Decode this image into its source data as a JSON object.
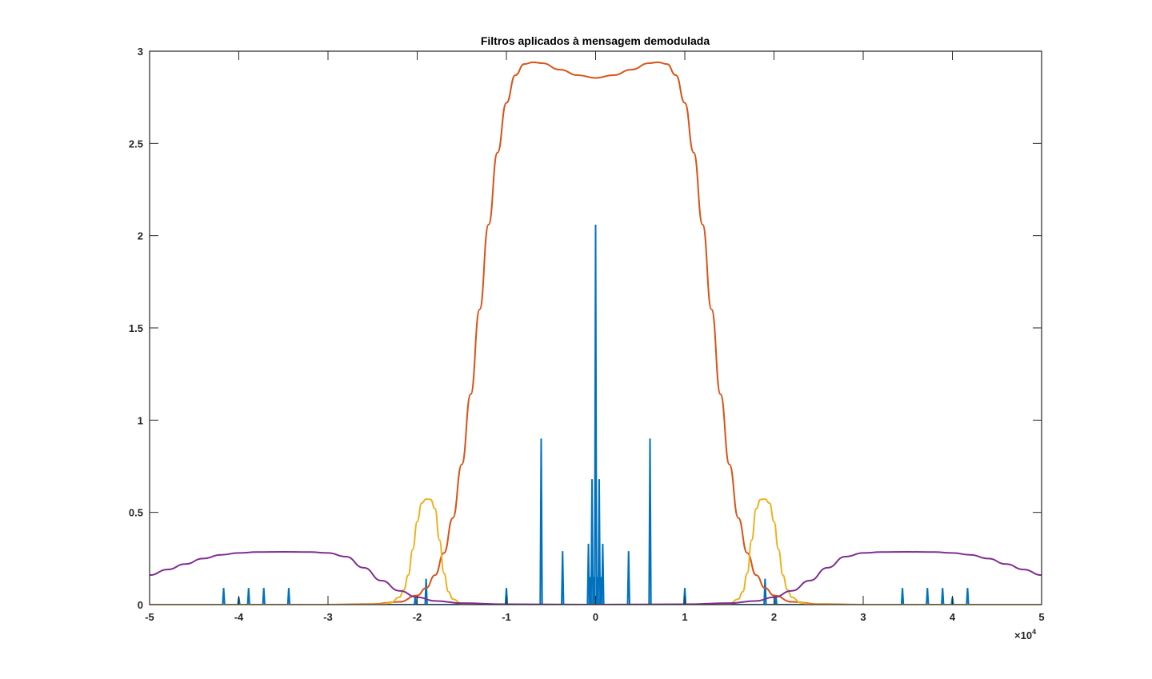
{
  "chart_data": {
    "type": "line",
    "title": "Filtros aplicados à mensagem demodulada",
    "xlabel": "",
    "ylabel": "",
    "xlim": [
      -50000,
      50000
    ],
    "ylim": [
      0,
      3
    ],
    "x_multiplier_label": "×10",
    "x_multiplier_exponent": "4",
    "xtick_values": [
      -5,
      -4,
      -3,
      -2,
      -1,
      0,
      1,
      2,
      3,
      4,
      5
    ],
    "xtick_labels": [
      "-5",
      "-4",
      "-3",
      "-2",
      "-1",
      "0",
      "1",
      "2",
      "3",
      "4",
      "5"
    ],
    "ytick_values": [
      0,
      0.5,
      1,
      1.5,
      2,
      2.5,
      3
    ],
    "ytick_labels": [
      "0",
      "0.5",
      "1",
      "1.5",
      "2",
      "2.5",
      "3"
    ],
    "grid": false,
    "legend": "none",
    "series": [
      {
        "color": "#0072BD",
        "kind": "spectrum",
        "spikes": [
          {
            "x": 0,
            "y": 2.06
          },
          {
            "x": -400,
            "y": 0.68
          },
          {
            "x": 400,
            "y": 0.68
          },
          {
            "x": -800,
            "y": 0.33
          },
          {
            "x": 800,
            "y": 0.33
          },
          {
            "x": -200,
            "y": 0.15
          },
          {
            "x": 200,
            "y": 0.15
          },
          {
            "x": -600,
            "y": 0.15
          },
          {
            "x": 600,
            "y": 0.15
          },
          {
            "x": -6100,
            "y": 0.9
          },
          {
            "x": 6100,
            "y": 0.9
          },
          {
            "x": -3700,
            "y": 0.29
          },
          {
            "x": 3700,
            "y": 0.29
          },
          {
            "x": -10000,
            "y": 0.09
          },
          {
            "x": 10000,
            "y": 0.09
          },
          {
            "x": -19000,
            "y": 0.14
          },
          {
            "x": 19000,
            "y": 0.14
          },
          {
            "x": -20200,
            "y": 0.05
          },
          {
            "x": 20200,
            "y": 0.05
          },
          {
            "x": -34400,
            "y": 0.09
          },
          {
            "x": 34400,
            "y": 0.09
          },
          {
            "x": -37200,
            "y": 0.09
          },
          {
            "x": 37200,
            "y": 0.09
          },
          {
            "x": -38900,
            "y": 0.09
          },
          {
            "x": 38900,
            "y": 0.09
          },
          {
            "x": -41700,
            "y": 0.09
          },
          {
            "x": 41700,
            "y": 0.09
          },
          {
            "x": -40000,
            "y": 0.04
          },
          {
            "x": 40000,
            "y": 0.04
          }
        ]
      },
      {
        "color": "#D95319",
        "kind": "lowpass",
        "x": [
          0,
          2000,
          4000,
          6000,
          7000,
          8000,
          9000,
          10000,
          11000,
          12000,
          13000,
          14000,
          15000,
          16000,
          17000,
          18000,
          19000,
          20000,
          22000,
          25000,
          30000,
          50000
        ],
        "y": [
          2.855,
          2.87,
          2.9,
          2.935,
          2.94,
          2.93,
          2.87,
          2.72,
          2.45,
          2.06,
          1.6,
          1.14,
          0.76,
          0.47,
          0.28,
          0.16,
          0.09,
          0.05,
          0.015,
          0.003,
          0.0,
          0.0
        ]
      },
      {
        "color": "#EDB120",
        "kind": "bandpass",
        "x": [
          0,
          10000,
          14000,
          15000,
          16000,
          16500,
          17000,
          17500,
          18000,
          18500,
          19000,
          19500,
          20000,
          20500,
          21000,
          21500,
          22000,
          23000,
          24000,
          28000,
          50000
        ],
        "y": [
          0,
          0,
          0.001,
          0.005,
          0.03,
          0.07,
          0.17,
          0.35,
          0.52,
          0.57,
          0.572,
          0.55,
          0.45,
          0.3,
          0.16,
          0.08,
          0.04,
          0.01,
          0.002,
          0.0,
          0.0
        ]
      },
      {
        "color": "#7E2F8E",
        "kind": "highband",
        "x": [
          0,
          10000,
          15000,
          18000,
          20000,
          22000,
          24000,
          26000,
          28000,
          30000,
          32000,
          35000,
          38000,
          40000,
          42000,
          44000,
          46000,
          48000,
          50000
        ],
        "y": [
          0,
          0.002,
          0.008,
          0.02,
          0.04,
          0.075,
          0.13,
          0.2,
          0.26,
          0.28,
          0.285,
          0.286,
          0.285,
          0.28,
          0.27,
          0.25,
          0.22,
          0.19,
          0.16
        ]
      }
    ]
  }
}
